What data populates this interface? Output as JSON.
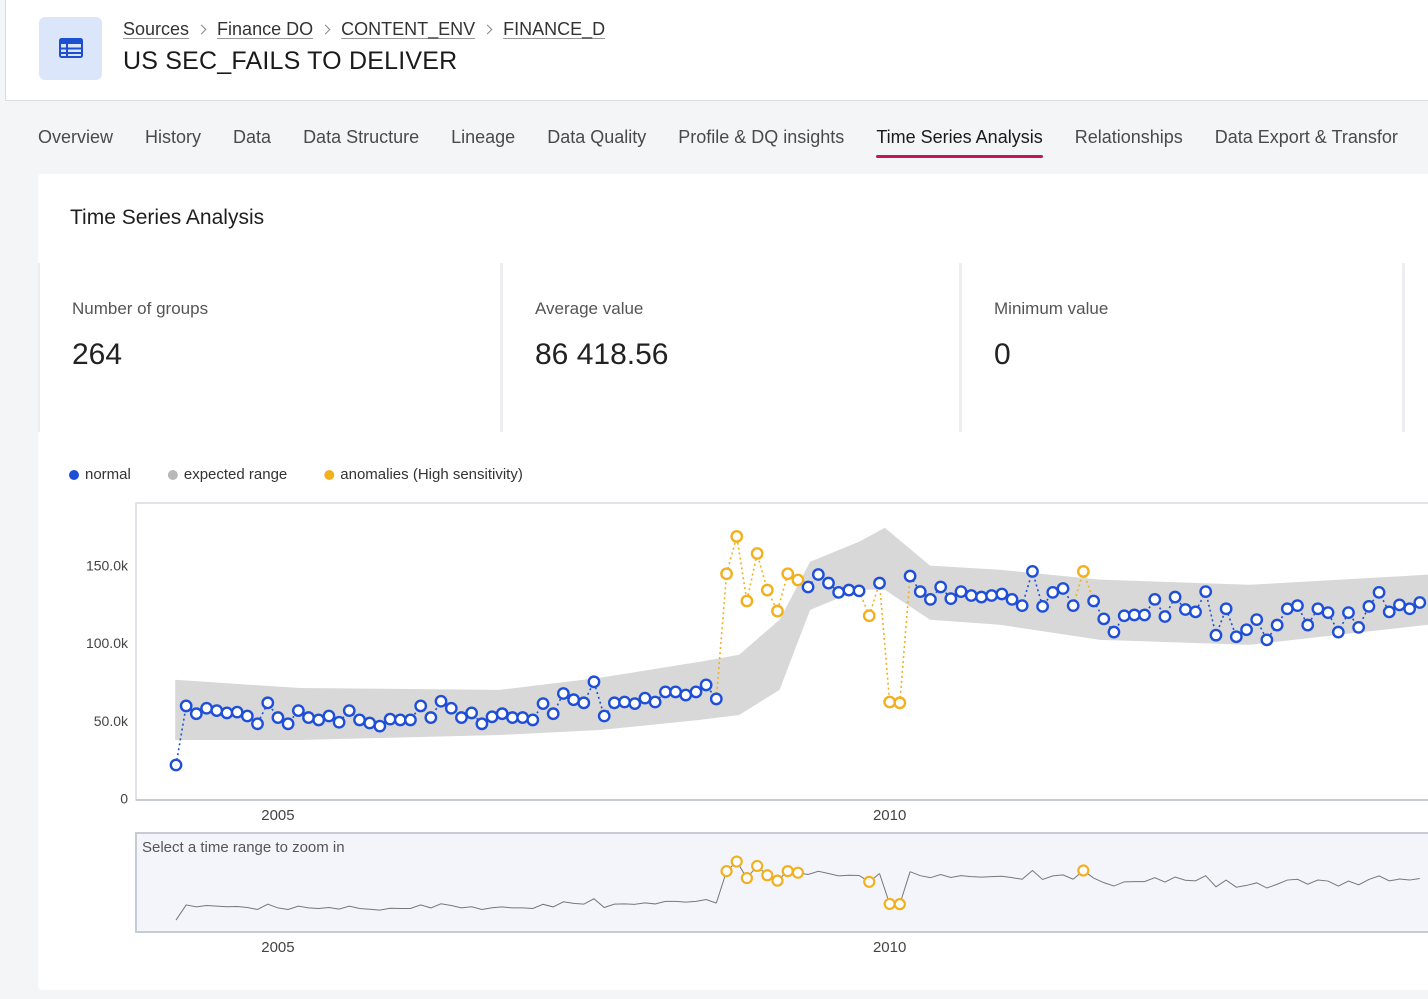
{
  "header": {
    "breadcrumb": [
      "Sources",
      "Finance DO",
      "CONTENT_ENV",
      "FINANCE_D"
    ],
    "title": "US SEC_FAILS TO DELIVER"
  },
  "tabs": [
    "Overview",
    "History",
    "Data",
    "Data Structure",
    "Lineage",
    "Data Quality",
    "Profile & DQ insights",
    "Time Series Analysis",
    "Relationships",
    "Data Export & Transfor"
  ],
  "active_tab": 7,
  "section_title": "Time Series Analysis",
  "stats": [
    {
      "label": "Number of groups",
      "value": "264"
    },
    {
      "label": "Average value",
      "value": "86 418.56"
    },
    {
      "label": "Minimum value",
      "value": "0"
    }
  ],
  "chart_data": {
    "type": "line",
    "x": [
      2004.167,
      2004.25,
      2004.333,
      2004.417,
      2004.5,
      2004.583,
      2004.667,
      2004.75,
      2004.833,
      2004.917,
      2005,
      2005.083,
      2005.167,
      2005.25,
      2005.333,
      2005.417,
      2005.5,
      2005.583,
      2005.667,
      2005.75,
      2005.833,
      2005.917,
      2006,
      2006.083,
      2006.167,
      2006.25,
      2006.333,
      2006.417,
      2006.5,
      2006.583,
      2006.667,
      2006.75,
      2006.833,
      2006.917,
      2007,
      2007.083,
      2007.167,
      2007.25,
      2007.333,
      2007.417,
      2007.5,
      2007.583,
      2007.667,
      2007.75,
      2007.833,
      2007.917,
      2008,
      2008.083,
      2008.167,
      2008.25,
      2008.333,
      2008.417,
      2008.5,
      2008.583,
      2008.667,
      2008.75,
      2008.833,
      2008.917,
      2009,
      2009.083,
      2009.167,
      2009.25,
      2009.333,
      2009.417,
      2009.5,
      2009.583,
      2009.667,
      2009.75,
      2009.833,
      2009.917,
      2010,
      2010.083,
      2010.167,
      2010.25,
      2010.333,
      2010.417,
      2010.5,
      2010.583,
      2010.667,
      2010.75,
      2010.833,
      2010.917,
      2011,
      2011.083,
      2011.167,
      2011.25,
      2011.333,
      2011.417,
      2011.5,
      2011.583,
      2011.667,
      2011.75,
      2011.833,
      2011.917,
      2012,
      2012.083,
      2012.167,
      2012.25,
      2012.333,
      2012.417,
      2012.5,
      2012.583,
      2012.667,
      2012.75,
      2012.833,
      2012.917,
      2013,
      2013.083,
      2013.167,
      2013.25,
      2013.333,
      2013.417,
      2013.5,
      2013.583,
      2013.667,
      2013.75,
      2013.833,
      2013.917,
      2014,
      2014.083,
      2014.167,
      2014.25,
      2014.333
    ],
    "series": [
      {
        "name": "normal",
        "color": "#1f4fd8",
        "values": [
          22500,
          60500,
          55500,
          59000,
          57500,
          56000,
          56500,
          54000,
          49000,
          62500,
          53000,
          49000,
          57500,
          53000,
          51500,
          54000,
          50000,
          57500,
          51500,
          49500,
          47500,
          52000,
          51500,
          51500,
          60500,
          53000,
          63500,
          59000,
          53000,
          56000,
          49000,
          53500,
          55500,
          53000,
          53000,
          51500,
          62000,
          55500,
          68500,
          64500,
          62500,
          76000,
          54000,
          62500,
          63000,
          62000,
          65500,
          63000,
          69500,
          69500,
          67500,
          69500,
          74000,
          65000,
          null,
          null,
          null,
          null,
          null,
          null,
          null,
          null,
          137000,
          145000,
          139500,
          133500,
          135000,
          134500,
          null,
          139500,
          null,
          null,
          144000,
          134000,
          129000,
          137000,
          129500,
          134000,
          131500,
          130500,
          131500,
          132500,
          129000,
          125000,
          147000,
          124500,
          133500,
          136000,
          125000,
          null,
          128000,
          116500,
          108000,
          118500,
          119000,
          119000,
          129000,
          118000,
          130500,
          122500,
          121000,
          134000,
          106000,
          123000,
          105000,
          109500,
          116000,
          103000,
          112500,
          123000,
          125000,
          112500,
          123000,
          120500,
          108000,
          120500,
          111000,
          124500,
          133500,
          121000,
          125500,
          123000,
          127000
        ]
      },
      {
        "name": "anomalies (High sensitivity)",
        "color": "#f2b01e",
        "values": [
          null,
          null,
          null,
          null,
          null,
          null,
          null,
          null,
          null,
          null,
          null,
          null,
          null,
          null,
          null,
          null,
          null,
          null,
          null,
          null,
          null,
          null,
          null,
          null,
          null,
          null,
          null,
          null,
          null,
          null,
          null,
          null,
          null,
          null,
          null,
          null,
          null,
          null,
          null,
          null,
          null,
          null,
          null,
          null,
          null,
          null,
          null,
          null,
          null,
          null,
          null,
          null,
          null,
          null,
          145500,
          169500,
          128000,
          158500,
          135000,
          121500,
          145500,
          141500,
          null,
          null,
          null,
          null,
          null,
          null,
          118500,
          null,
          63000,
          62500,
          null,
          null,
          null,
          null,
          null,
          null,
          null,
          null,
          null,
          null,
          null,
          null,
          null,
          null,
          null,
          null,
          null,
          147000,
          null,
          null,
          null,
          null,
          null,
          null,
          null,
          null,
          null,
          null,
          null,
          null,
          null,
          null,
          null,
          null,
          null,
          null,
          null,
          null,
          null,
          null,
          null,
          null,
          null,
          null,
          null,
          null,
          null,
          null,
          null,
          null,
          null
        ]
      }
    ],
    "band": {
      "name": "expected range",
      "color": "#b8b8b8",
      "x": [
        2004.16,
        2005.18,
        2006.81,
        2007.63,
        2008.45,
        2008.77,
        2009.1,
        2009.35,
        2009.75,
        2009.96,
        2010.33,
        2010.9,
        2011.72,
        2012.94,
        2014.4
      ],
      "lower": [
        38600,
        38600,
        41800,
        45000,
        51500,
        54700,
        70800,
        122300,
        135200,
        135200,
        115900,
        112700,
        103000,
        99800,
        112700
      ],
      "upper": [
        77300,
        72000,
        70800,
        78600,
        88900,
        93400,
        115900,
        153200,
        166100,
        175100,
        150700,
        148100,
        141700,
        138400,
        144900
      ]
    },
    "xlim": [
      2003.84,
      2014.4
    ],
    "xticks": [
      2005,
      2010
    ],
    "ylim": [
      0,
      191000
    ],
    "yticks": [
      0,
      {
        "value": 50000,
        "label": "50.0k"
      },
      {
        "value": 100000,
        "label": "100.0k"
      },
      {
        "value": 150000,
        "label": "150.0k"
      }
    ],
    "grid": false,
    "navigator_label": "Select a time range to zoom in"
  }
}
